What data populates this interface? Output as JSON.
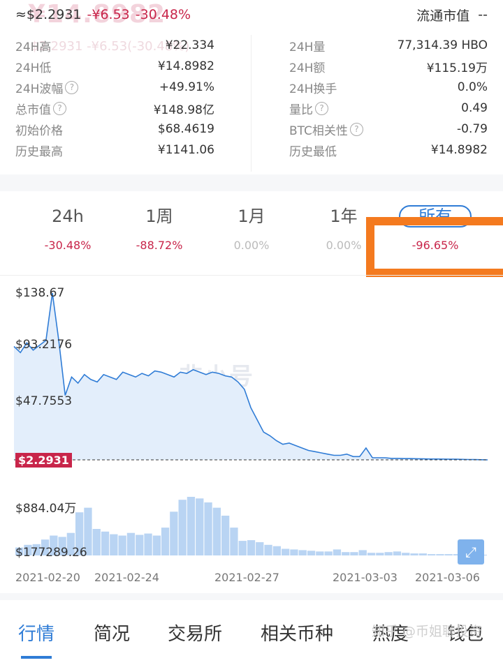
{
  "header": {
    "price": "≈$2.2931",
    "change_abs": "-¥6.53",
    "change_pct": "-30.48%",
    "market_cap_label": "流通市值",
    "market_cap_value": "--",
    "ghost_price": "¥14.8982",
    "ghost_sub": "$2.2931  -¥6.53(-30.48%)"
  },
  "stats_left": [
    {
      "label": "24H高",
      "value": "¥22.334",
      "help": false
    },
    {
      "label": "24H低",
      "value": "¥14.8982",
      "help": false
    },
    {
      "label": "24H波幅",
      "value": "+49.91%",
      "help": true
    },
    {
      "label": "总市值",
      "value": "¥148.98亿",
      "help": true
    },
    {
      "label": "初始价格",
      "value": "$68.4619",
      "help": false
    },
    {
      "label": "历史最高",
      "value": "¥1141.06",
      "help": false
    }
  ],
  "stats_right": [
    {
      "label": "24H量",
      "value": "77,314.39 HBO",
      "help": false
    },
    {
      "label": "24H额",
      "value": "¥115.19万",
      "help": false
    },
    {
      "label": "24H换手",
      "value": "0.0%",
      "help": false
    },
    {
      "label": "量比",
      "value": "0.49",
      "help": true
    },
    {
      "label": "BTC相关性",
      "value": "-0.79",
      "help": true
    },
    {
      "label": "历史最低",
      "value": "¥14.8982",
      "help": false
    }
  ],
  "periods": [
    {
      "label": "24h",
      "change": "-30.48%",
      "neg": true
    },
    {
      "label": "1周",
      "change": "-88.72%",
      "neg": true
    },
    {
      "label": "1月",
      "change": "0.00%",
      "neg": false
    },
    {
      "label": "1年",
      "change": "0.00%",
      "neg": false
    },
    {
      "label": "所有",
      "change": "-96.65%",
      "neg": true,
      "selected": true
    }
  ],
  "chart": {
    "price_labels": [
      "$138.67",
      "$93.2176",
      "$47.7553",
      "$2.2931"
    ],
    "current_price": "$2.2931",
    "watermark": "非小号",
    "volume_labels": [
      "$884.04万",
      "$177289.26"
    ],
    "dates": [
      "2021-02-20",
      "2021-02-24",
      "2021-02-27",
      "2021-03-03",
      "2021-03-06"
    ]
  },
  "chart_data": {
    "type": "area",
    "ylim": [
      2.2931,
      138.67
    ],
    "line_color": "#2f7cd6",
    "fill_color": "#e3eefb",
    "current_price_color": "#c8254a",
    "series": [
      {
        "values": [
          95,
          90,
          98,
          92,
          96,
          100,
          138.67,
          100,
          55,
          70,
          65,
          72,
          68,
          66,
          72,
          70,
          68,
          74,
          72,
          70,
          73,
          71,
          75,
          74,
          72,
          70,
          74,
          73,
          76,
          74,
          72,
          74,
          73,
          71,
          70,
          66,
          60,
          45,
          35,
          25,
          22,
          18,
          15,
          16,
          14,
          12,
          10,
          9,
          8,
          7,
          6,
          6,
          7,
          5,
          5,
          12,
          4,
          4,
          4,
          3.5,
          3.5,
          3.3,
          3.3,
          3.2,
          3.1,
          3.0,
          3.0,
          2.9,
          2.8,
          2.8,
          2.7,
          2.6,
          2.5,
          2.4,
          2.3
        ]
      }
    ],
    "volume_values": [
      1.2,
      1.6,
      1.7,
      2.4,
      3.0,
      2.8,
      3.4,
      6.5,
      7.2,
      4.0,
      3.6,
      3.2,
      3.0,
      3.4,
      3.1,
      3.3,
      3.0,
      4.2,
      6.6,
      8.4,
      8.84,
      8.6,
      8.0,
      7.2,
      6.0,
      4.2,
      2.2,
      2.3,
      2.0,
      1.6,
      1.4,
      1.0,
      0.9,
      0.8,
      0.7,
      0.6,
      0.6,
      0.9,
      0.5,
      0.5,
      0.8,
      0.4,
      0.4,
      0.5,
      0.6,
      0.4,
      0.3,
      0.3,
      0.2,
      0.2,
      0.2,
      0.2,
      0.2,
      0.15,
      0.1
    ]
  },
  "nav": [
    {
      "label": "行情",
      "active": true
    },
    {
      "label": "简况",
      "active": false
    },
    {
      "label": "交易所",
      "active": false
    },
    {
      "label": "相关币种",
      "active": false
    },
    {
      "label": "热度",
      "active": false
    },
    {
      "label": "钱包",
      "active": false
    }
  ],
  "credit": "知乎 @币姐聊投资"
}
